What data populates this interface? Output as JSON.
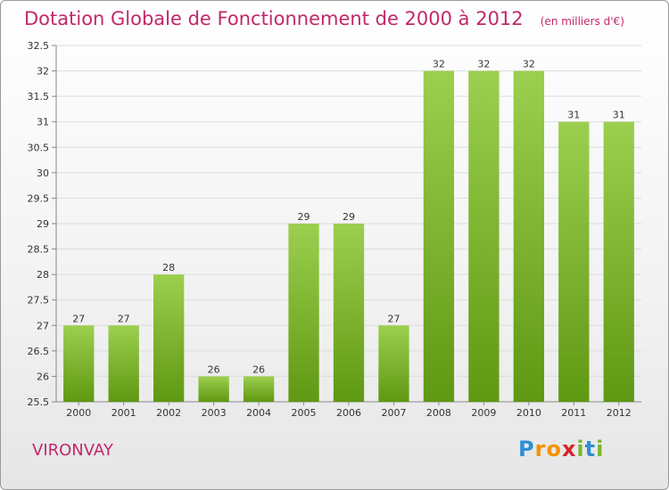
{
  "title": "Dotation Globale de Fonctionnement de 2000 à 2012",
  "unit_label": "(en milliers d'€)",
  "commune": "VIRONVAY",
  "brand": {
    "letters": [
      {
        "char": "P",
        "color": "#2e8fd6"
      },
      {
        "char": "r",
        "color": "#f39200"
      },
      {
        "char": "o",
        "color": "#f39200"
      },
      {
        "char": "x",
        "color": "#d8232a"
      },
      {
        "char": "i",
        "color": "#7ab72e"
      },
      {
        "char": "t",
        "color": "#2e8fd6"
      },
      {
        "char": "i",
        "color": "#7ab72e"
      }
    ]
  },
  "colors": {
    "bar_light": "#9ccf4f",
    "bar_dark": "#5f9812",
    "accent": "#c1286a"
  },
  "chart_data": {
    "type": "bar",
    "categories": [
      "2000",
      "2001",
      "2002",
      "2003",
      "2004",
      "2005",
      "2006",
      "2007",
      "2008",
      "2009",
      "2010",
      "2011",
      "2012"
    ],
    "values": [
      27,
      27,
      28,
      26,
      26,
      29,
      29,
      27,
      32,
      32,
      32,
      31,
      31
    ],
    "data_labels": [
      "27",
      "27",
      "28",
      "26",
      "26",
      "29",
      "29",
      "27",
      "32",
      "32",
      "32",
      "31",
      "31"
    ],
    "ylim": [
      25.5,
      32.5
    ],
    "yticks": [
      "25.5",
      "26",
      "26.5",
      "27",
      "27.5",
      "28",
      "28.5",
      "29",
      "29.5",
      "30",
      "30.5",
      "31",
      "31.5",
      "32",
      "32.5"
    ],
    "grid": true,
    "xlabel": "",
    "ylabel": ""
  }
}
